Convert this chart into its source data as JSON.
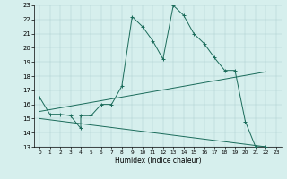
{
  "title": "",
  "xlabel": "Humidex (Indice chaleur)",
  "xlim": [
    -0.5,
    23.5
  ],
  "ylim": [
    13,
    23
  ],
  "yticks": [
    13,
    14,
    15,
    16,
    17,
    18,
    19,
    20,
    21,
    22,
    23
  ],
  "xticks": [
    0,
    1,
    2,
    3,
    4,
    5,
    6,
    7,
    8,
    9,
    10,
    11,
    12,
    13,
    14,
    15,
    16,
    17,
    18,
    19,
    20,
    21,
    22,
    23
  ],
  "bg_color": "#d6efed",
  "line_color": "#1a6b5a",
  "series": [
    {
      "x": [
        0,
        1,
        2,
        3,
        4,
        4,
        5,
        6,
        7,
        8,
        9,
        10,
        11,
        12,
        13,
        14,
        15,
        16,
        17,
        18,
        19,
        20,
        21,
        22
      ],
      "y": [
        16.5,
        15.3,
        15.3,
        15.2,
        14.3,
        15.2,
        15.2,
        16.0,
        16.0,
        17.3,
        22.2,
        21.5,
        20.5,
        19.2,
        23.0,
        22.3,
        21.0,
        20.3,
        19.3,
        18.4,
        18.4,
        14.8,
        13.0,
        13.0
      ]
    },
    {
      "x": [
        0,
        22
      ],
      "y": [
        15.5,
        18.3
      ]
    },
    {
      "x": [
        0,
        22
      ],
      "y": [
        15.0,
        13.0
      ]
    }
  ]
}
